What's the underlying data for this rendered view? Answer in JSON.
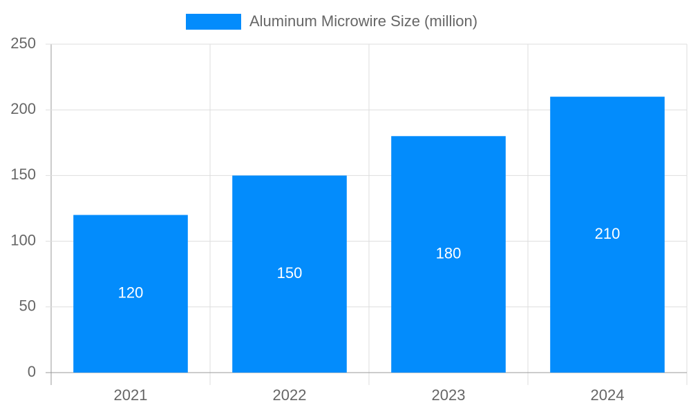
{
  "chart_data": {
    "type": "bar",
    "categories": [
      "2021",
      "2022",
      "2023",
      "2024"
    ],
    "series": [
      {
        "name": "Aluminum Microwire Size (million)",
        "color": "#038cfc",
        "values": [
          120,
          150,
          180,
          210
        ]
      }
    ],
    "ylim": [
      0,
      250
    ],
    "yticks": [
      0,
      50,
      100,
      150,
      200,
      250
    ],
    "grid": true,
    "legend": "top",
    "data_labels": true
  }
}
